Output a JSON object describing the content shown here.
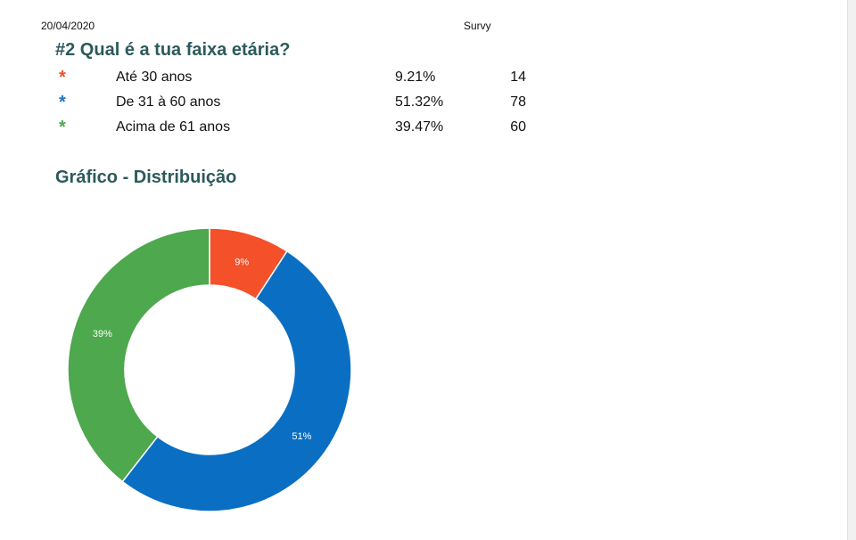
{
  "header": {
    "date": "20/04/2020",
    "app_name": "Survy"
  },
  "question": "#2 Qual é a tua faixa etária?",
  "answers": [
    {
      "label": "Até 30 anos",
      "percent": "9.21%",
      "count": "14",
      "color": "#f4502a"
    },
    {
      "label": "De 31 à 60 anos",
      "percent": "51.32%",
      "count": "78",
      "color": "#1f73c4"
    },
    {
      "label": "Acima de 61 anos",
      "percent": "39.47%",
      "count": "60",
      "color": "#4ea84e"
    }
  ],
  "chart_title": "Gráfico - Distribuição",
  "chart_data": {
    "type": "pie",
    "donut": true,
    "categories": [
      "Até 30 anos",
      "De 31 à 60 anos",
      "Acima de 61 anos"
    ],
    "values": [
      14,
      78,
      60
    ],
    "labels": [
      "9%",
      "51%",
      "39%"
    ],
    "colors": [
      "#f4502a",
      "#0a6fc2",
      "#4ea84e"
    ]
  }
}
